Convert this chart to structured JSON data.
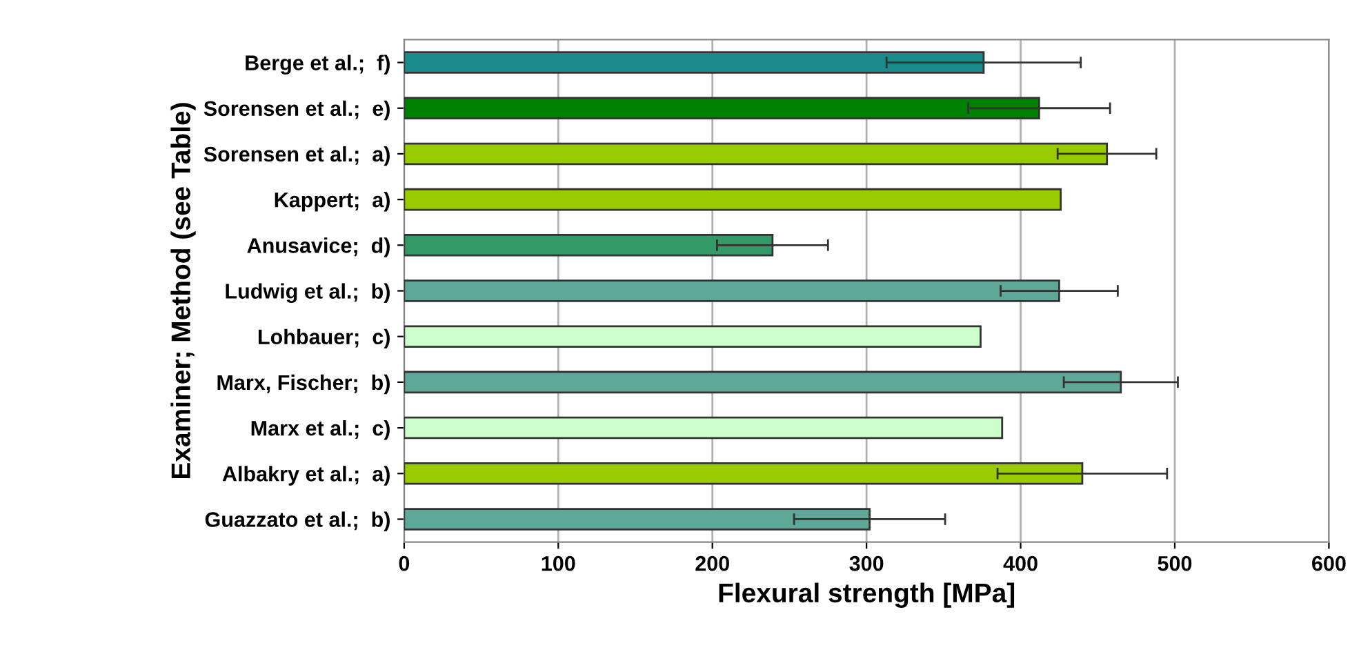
{
  "chart_data": {
    "type": "bar",
    "orientation": "horizontal",
    "xlabel": "Flexural strength [MPa]",
    "ylabel": "Examiner; Method (see Table)",
    "categories": [
      "Berge et al.;  f)",
      "Sorensen et al.;  e)",
      "Sorensen et al.;  a)",
      "Kappert;  a)",
      "Anusavice;  d)",
      "Ludwig et al.;  b)",
      "Lohbauer;  c)",
      "Marx, Fischer;  b)",
      "Marx et al.;  c)",
      "Albakry et al.;  a)",
      "Guazzato et al.;  b)"
    ],
    "values": [
      376,
      412,
      456,
      426,
      239,
      425,
      374,
      465,
      388,
      440,
      302
    ],
    "errors": [
      63,
      46,
      32,
      null,
      36,
      38,
      null,
      37,
      null,
      55,
      49
    ],
    "colors": [
      "#1a8a8a",
      "#008000",
      "#99cc00",
      "#99cc00",
      "#339966",
      "#5fa898",
      "#ccffcc",
      "#5fa898",
      "#ccffcc",
      "#99cc00",
      "#5fa898"
    ],
    "xlim": [
      0,
      600
    ],
    "xticks": [
      0,
      100,
      200,
      300,
      400,
      500,
      600
    ],
    "grid": "x"
  }
}
